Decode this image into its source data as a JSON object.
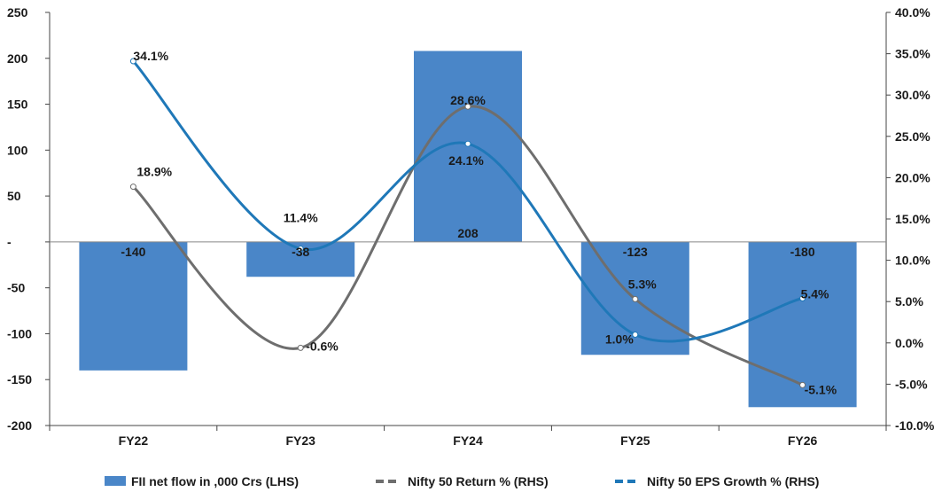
{
  "chart_data": {
    "type": "bar",
    "categories": [
      "FY22",
      "FY23",
      "FY24",
      "FY25",
      "FY26"
    ],
    "series": [
      {
        "name": "FII net flow in ,000 Crs (LHS)",
        "kind": "bar",
        "axis": "left",
        "color": "#4a86c8",
        "values": [
          -140,
          -38,
          208,
          -123,
          -180
        ],
        "labels": [
          "-140",
          "-38",
          "208",
          "-123",
          "-180"
        ]
      },
      {
        "name": "Nifty  50 Return % (RHS)",
        "kind": "line",
        "axis": "right",
        "color": "#6e6e6e",
        "values": [
          18.9,
          -0.6,
          28.6,
          5.3,
          -5.1
        ],
        "labels": [
          "18.9%",
          "-0.6%",
          "28.6%",
          "5.3%",
          "-5.1%"
        ]
      },
      {
        "name": "Nifty  50 EPS Growth % (RHS)",
        "kind": "line",
        "axis": "right",
        "color": "#1f78b8",
        "values": [
          34.1,
          11.4,
          24.1,
          1.0,
          5.4
        ],
        "labels": [
          "34.1%",
          "11.4%",
          "24.1%",
          "1.0%",
          "5.4%"
        ]
      }
    ],
    "left_axis": {
      "ylim": [
        -200,
        250
      ],
      "ticks": [
        250,
        200,
        150,
        100,
        50,
        0,
        -50,
        -100,
        -150,
        -200
      ],
      "tick_labels": [
        "250",
        "200",
        "150",
        "100",
        "50",
        "-",
        "-50",
        "-100",
        "-150",
        "-200"
      ]
    },
    "right_axis": {
      "ylim": [
        -10,
        40
      ],
      "ticks": [
        40,
        35,
        30,
        25,
        20,
        15,
        10,
        5,
        0,
        -5,
        -10
      ],
      "tick_labels": [
        "40.0%",
        "35.0%",
        "30.0%",
        "25.0%",
        "20.0%",
        "15.0%",
        "10.0%",
        "5.0%",
        "0.0%",
        "-5.0%",
        "-10.0%"
      ]
    },
    "legend_position": "bottom",
    "grid": false
  }
}
